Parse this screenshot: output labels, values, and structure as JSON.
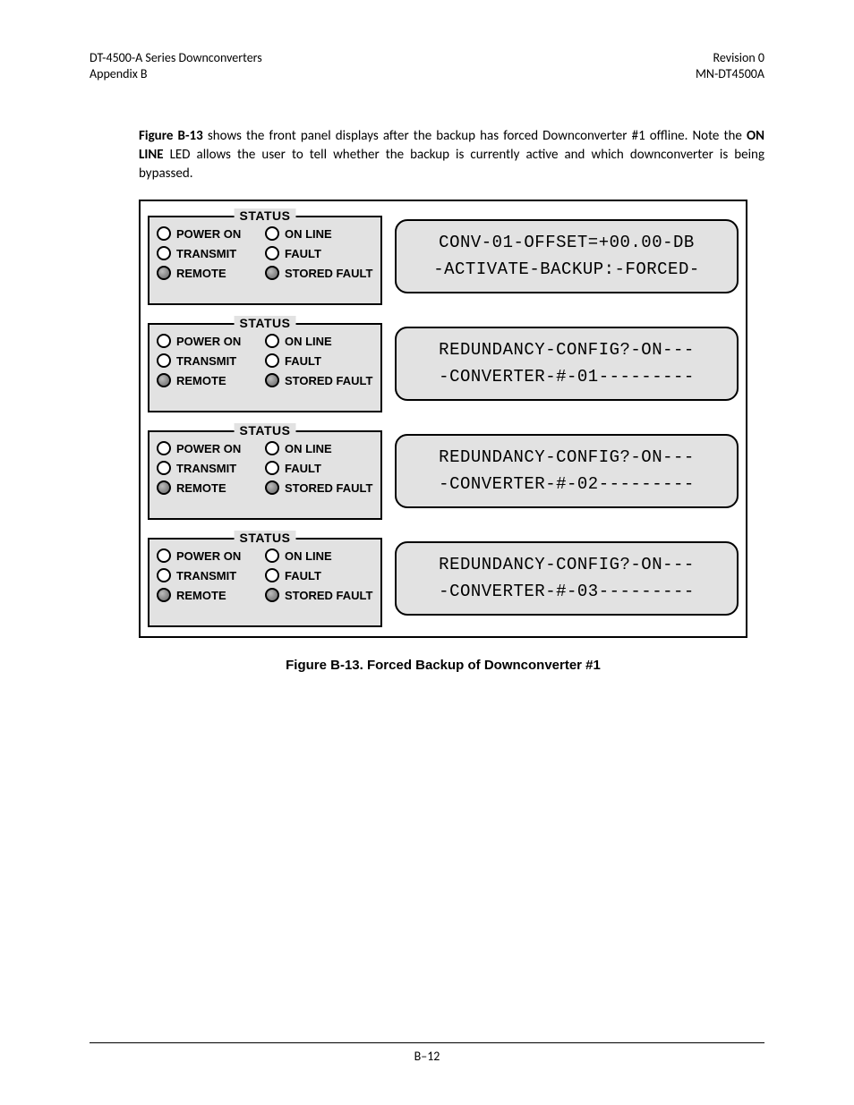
{
  "header": {
    "left_line1": "DT-4500-A Series Downconverters",
    "left_line2": "Appendix B",
    "right_line1": "Revision 0",
    "right_line2": "MN-DT4500A"
  },
  "paragraph": {
    "pre_bold1": "Figure B-13",
    "seg1": " shows the front panel displays after the backup has forced Downconverter #1 offline. Note the ",
    "bold2": "ON LINE",
    "seg2": " LED allows the user to tell whether the backup is currently active and which downconverter is being bypassed."
  },
  "status_title": "STATUS",
  "led_labels": {
    "power_on": "POWER ON",
    "on_line": "ON LINE",
    "transmit": "TRANSMIT",
    "fault": "FAULT",
    "remote": "REMOTE",
    "stored_fault": "STORED FAULT"
  },
  "panels": [
    {
      "leds": {
        "power_on": "on",
        "on_line": "on",
        "transmit": "on",
        "fault": "on",
        "remote": "off",
        "stored_fault": "off"
      },
      "lcd_line1": "CONV-01-OFFSET=+00.00-DB",
      "lcd_line2": "-ACTIVATE-BACKUP:-FORCED-"
    },
    {
      "leds": {
        "power_on": "on",
        "on_line": "on",
        "transmit": "on",
        "fault": "on",
        "remote": "off",
        "stored_fault": "off"
      },
      "lcd_line1": "REDUNDANCY-CONFIG?-ON---",
      "lcd_line2": "-CONVERTER-#-01---------"
    },
    {
      "leds": {
        "power_on": "on",
        "on_line": "on",
        "transmit": "on",
        "fault": "on",
        "remote": "off",
        "stored_fault": "off"
      },
      "lcd_line1": "REDUNDANCY-CONFIG?-ON---",
      "lcd_line2": "-CONVERTER-#-02---------"
    },
    {
      "leds": {
        "power_on": "on",
        "on_line": "on",
        "transmit": "on",
        "fault": "on",
        "remote": "off",
        "stored_fault": "off"
      },
      "lcd_line1": "REDUNDANCY-CONFIG?-ON---",
      "lcd_line2": "-CONVERTER-#-03---------"
    }
  ],
  "caption": "Figure B-13. Forced Backup of Downconverter #1",
  "page_number": "B–12",
  "colors": {
    "panel_bg": "#e2e2e2",
    "led_on": "#ffffff",
    "led_off": "#8c8c8c",
    "border": "#000000",
    "page_bg": "#ffffff"
  }
}
